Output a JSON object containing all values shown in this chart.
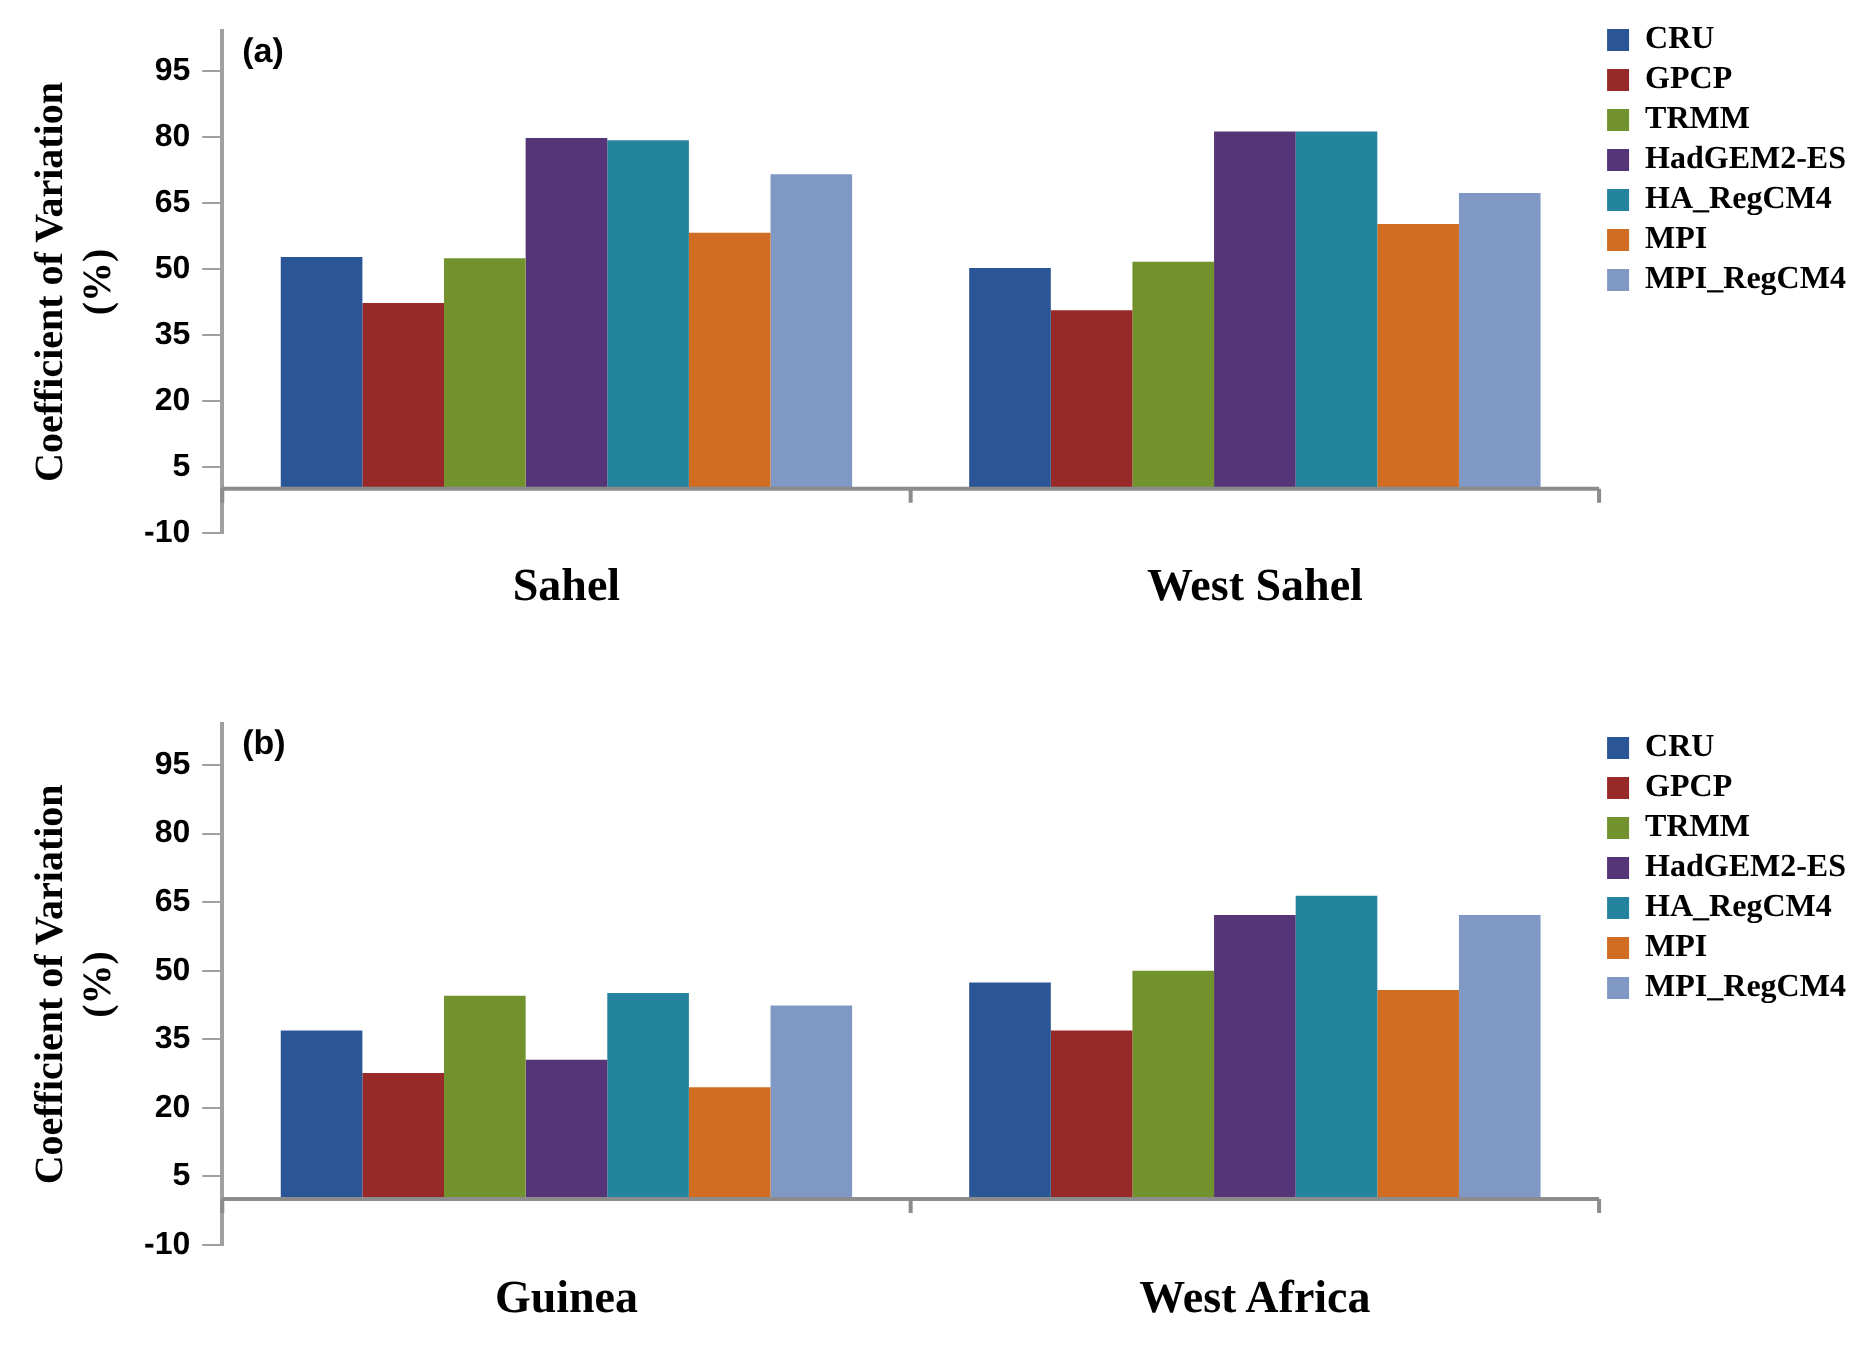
{
  "chart_data": [
    {
      "type": "bar",
      "annotations": [
        "(a)"
      ],
      "ylabel": "Coefficient of Variation\n(%)",
      "categories": [
        "Sahel",
        "West Sahel"
      ],
      "ylim": [
        -10,
        104
      ],
      "yticks": [
        -10,
        5,
        20,
        35,
        50,
        65,
        80,
        95
      ],
      "grid": false,
      "legend": "right",
      "series": [
        {
          "name": "CRU",
          "color": "#2a5597",
          "values": [
            52.7,
            50.2
          ]
        },
        {
          "name": "GPCP",
          "color": "#972a28",
          "values": [
            42.2,
            40.6
          ]
        },
        {
          "name": "TRMM",
          "color": "#72922e",
          "values": [
            52.4,
            51.6
          ]
        },
        {
          "name": "HadGEM2-ES",
          "color": "#553578",
          "values": [
            79.7,
            81.2
          ]
        },
        {
          "name": "HA_RegCM4",
          "color": "#25849d",
          "values": [
            79.2,
            81.2
          ]
        },
        {
          "name": "MPI",
          "color": "#d06d22",
          "values": [
            58.2,
            60.2
          ]
        },
        {
          "name": "MPI_RegCM4",
          "color": "#7f99c4",
          "values": [
            71.5,
            67.2
          ]
        }
      ]
    },
    {
      "type": "bar",
      "annotations": [
        "(b)"
      ],
      "ylabel": "Coefficient of Variation\n(%)",
      "categories": [
        "Guinea",
        "West Africa"
      ],
      "ylim": [
        -10,
        104
      ],
      "yticks": [
        -10,
        5,
        20,
        35,
        50,
        65,
        80,
        95
      ],
      "grid": false,
      "legend": "right",
      "series": [
        {
          "name": "CRU",
          "color": "#2a5597",
          "values": [
            36.9,
            47.4
          ]
        },
        {
          "name": "GPCP",
          "color": "#972a28",
          "values": [
            27.6,
            36.9
          ]
        },
        {
          "name": "TRMM",
          "color": "#72922e",
          "values": [
            44.5,
            50.0
          ]
        },
        {
          "name": "HadGEM2-ES",
          "color": "#553578",
          "values": [
            30.5,
            62.2
          ]
        },
        {
          "name": "HA_RegCM4",
          "color": "#25849d",
          "values": [
            45.1,
            66.4
          ]
        },
        {
          "name": "MPI",
          "color": "#d06d22",
          "values": [
            24.5,
            45.8
          ]
        },
        {
          "name": "MPI_RegCM4",
          "color": "#7f99c4",
          "values": [
            42.4,
            62.2
          ]
        }
      ]
    }
  ]
}
